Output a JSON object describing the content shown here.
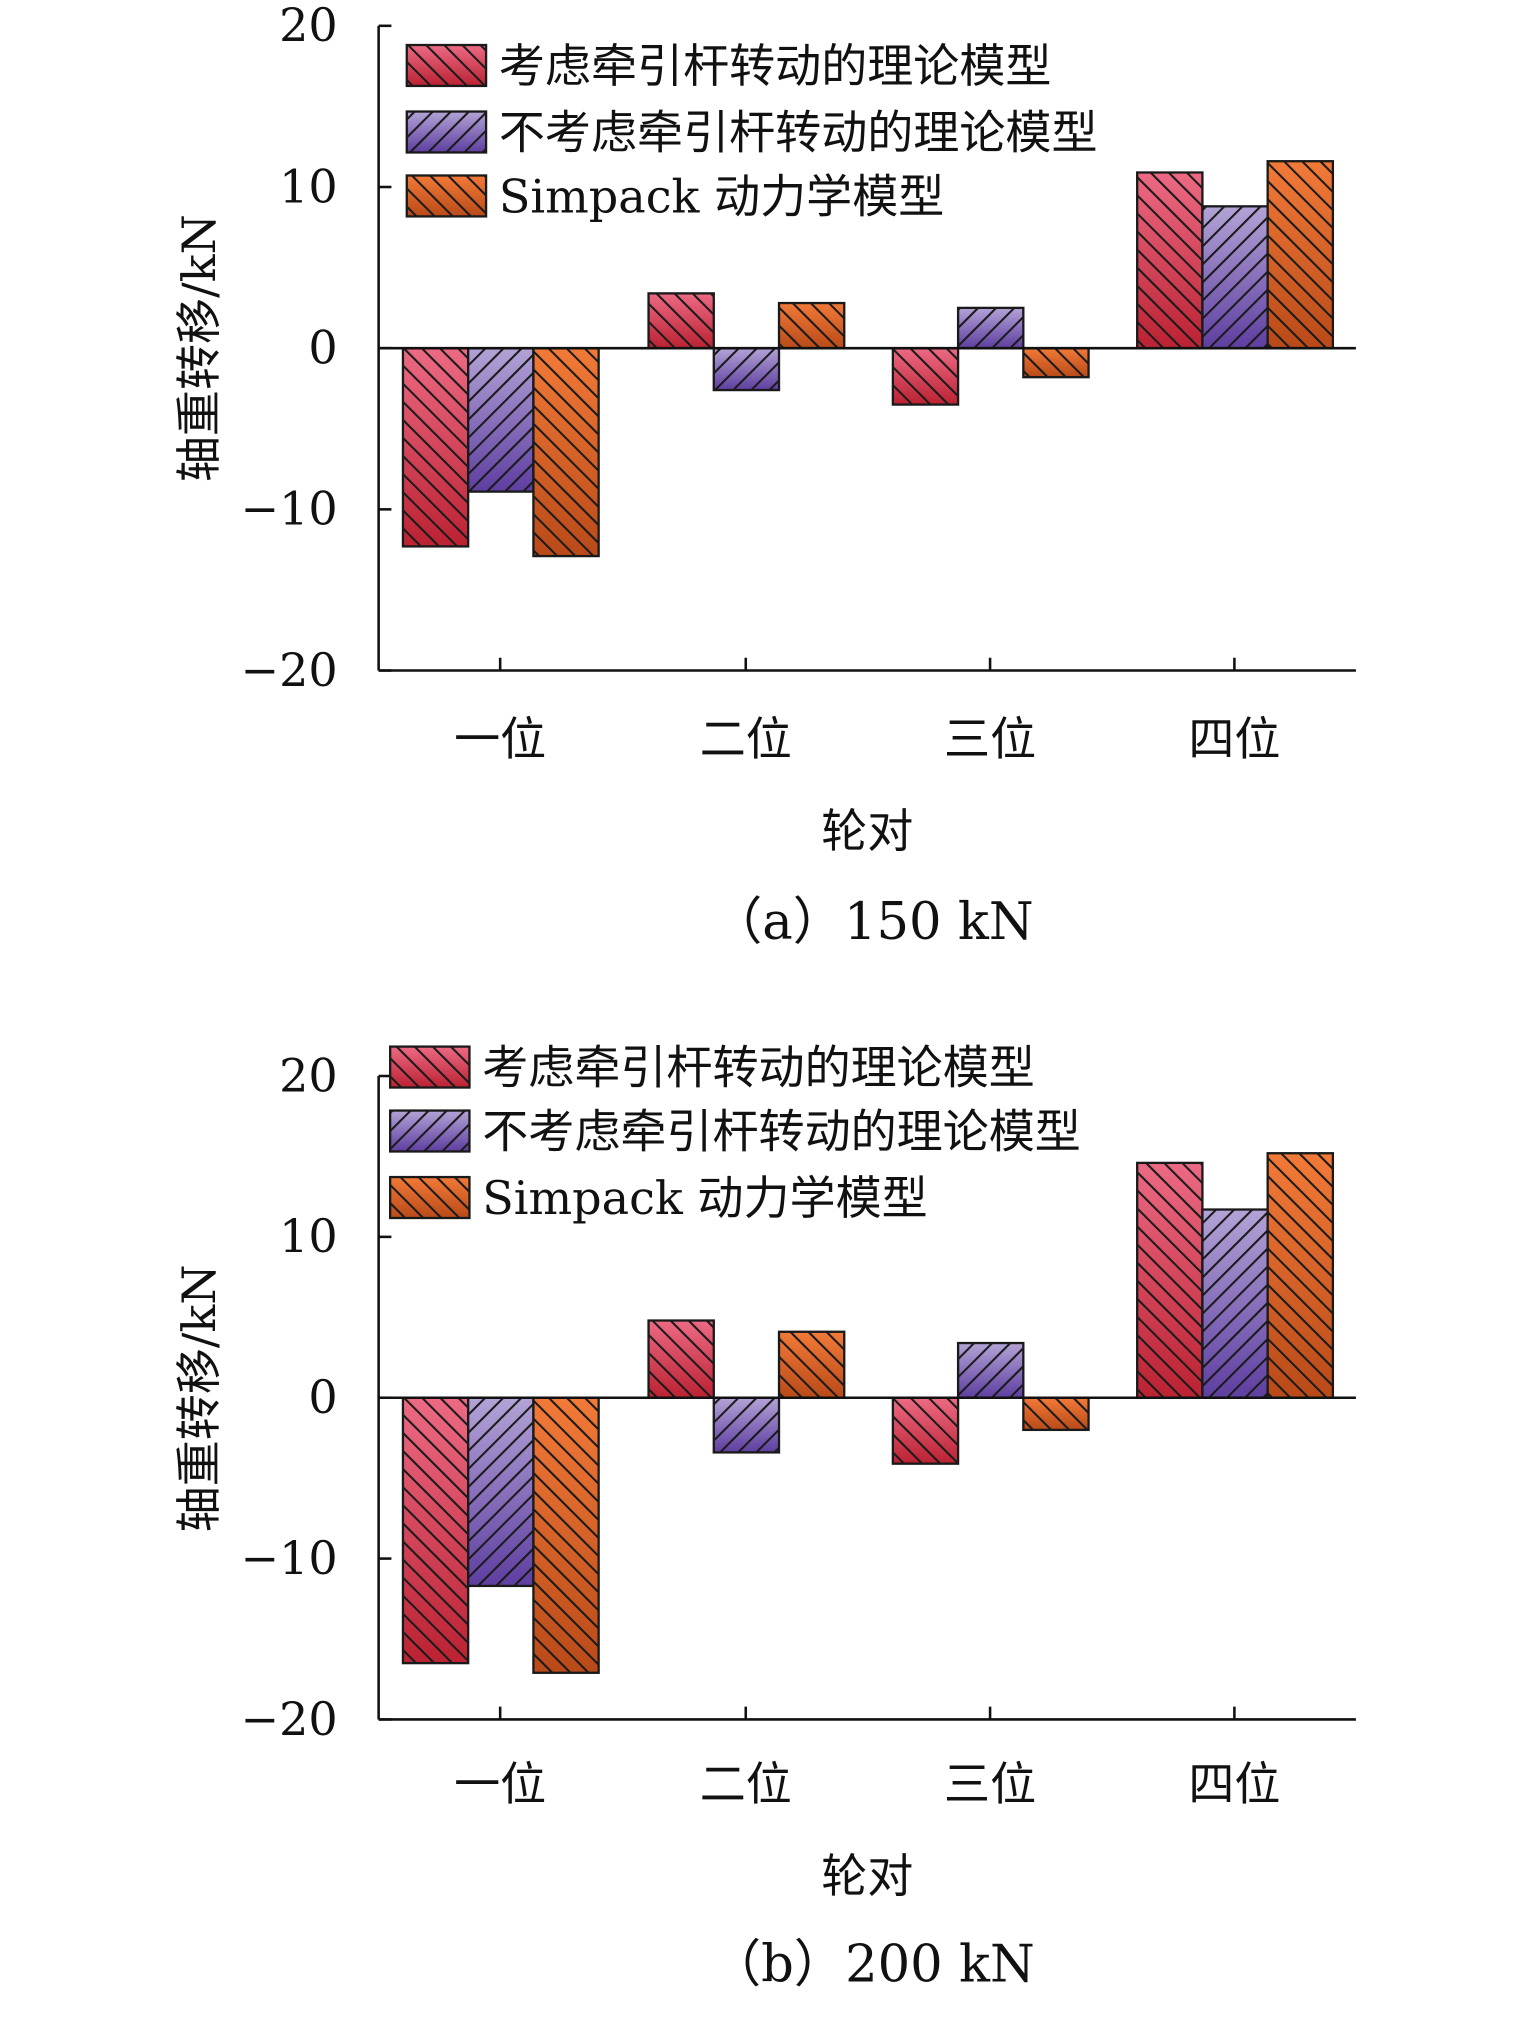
{
  "colors": {
    "series_top": [
      "#ec6a84",
      "#b3a3d6",
      "#f27a38"
    ],
    "series_bottom": [
      "#bb2232",
      "#5e3ea0",
      "#b94a18"
    ],
    "hatch": "#1a1a1a"
  },
  "chart_data": [
    {
      "type": "bar",
      "caption": "（a）150 kN",
      "xlabel": "轮对",
      "ylabel": "轴重转移/kN",
      "ylim": [
        -20,
        20
      ],
      "yticks": [
        20,
        10,
        0,
        -10,
        -20
      ],
      "ytick_labels": [
        "20",
        "10",
        "0",
        "−10",
        "−20"
      ],
      "categories": [
        "一位",
        "二位",
        "三位",
        "四位"
      ],
      "legend_position": "top-left",
      "series": [
        {
          "name": "考虑牵引杆转动的理论模型",
          "values": [
            -12.3,
            3.4,
            -3.5,
            10.9
          ]
        },
        {
          "name": "不考虑牵引杆转动的理论模型",
          "values": [
            -8.9,
            -2.6,
            2.5,
            8.8
          ]
        },
        {
          "name": "Simpack 动力学模型",
          "values": [
            -12.9,
            2.8,
            -1.8,
            11.6
          ]
        }
      ]
    },
    {
      "type": "bar",
      "caption": "（b）200 kN",
      "xlabel": "轮对",
      "ylabel": "轴重转移/kN",
      "ylim": [
        -20,
        20
      ],
      "yticks": [
        20,
        10,
        0,
        -10,
        -20
      ],
      "ytick_labels": [
        "20",
        "10",
        "0",
        "−10",
        "−20"
      ],
      "categories": [
        "一位",
        "二位",
        "三位",
        "四位"
      ],
      "legend_position": "top-left",
      "series": [
        {
          "name": "考虑牵引杆转动的理论模型",
          "values": [
            -16.5,
            4.8,
            -4.1,
            14.6
          ]
        },
        {
          "name": "不考虑牵引杆转动的理论模型",
          "values": [
            -11.7,
            -3.4,
            3.4,
            11.7
          ]
        },
        {
          "name": "Simpack  动力学模型",
          "values": [
            -17.1,
            4.1,
            -2.0,
            15.2
          ]
        }
      ]
    }
  ]
}
